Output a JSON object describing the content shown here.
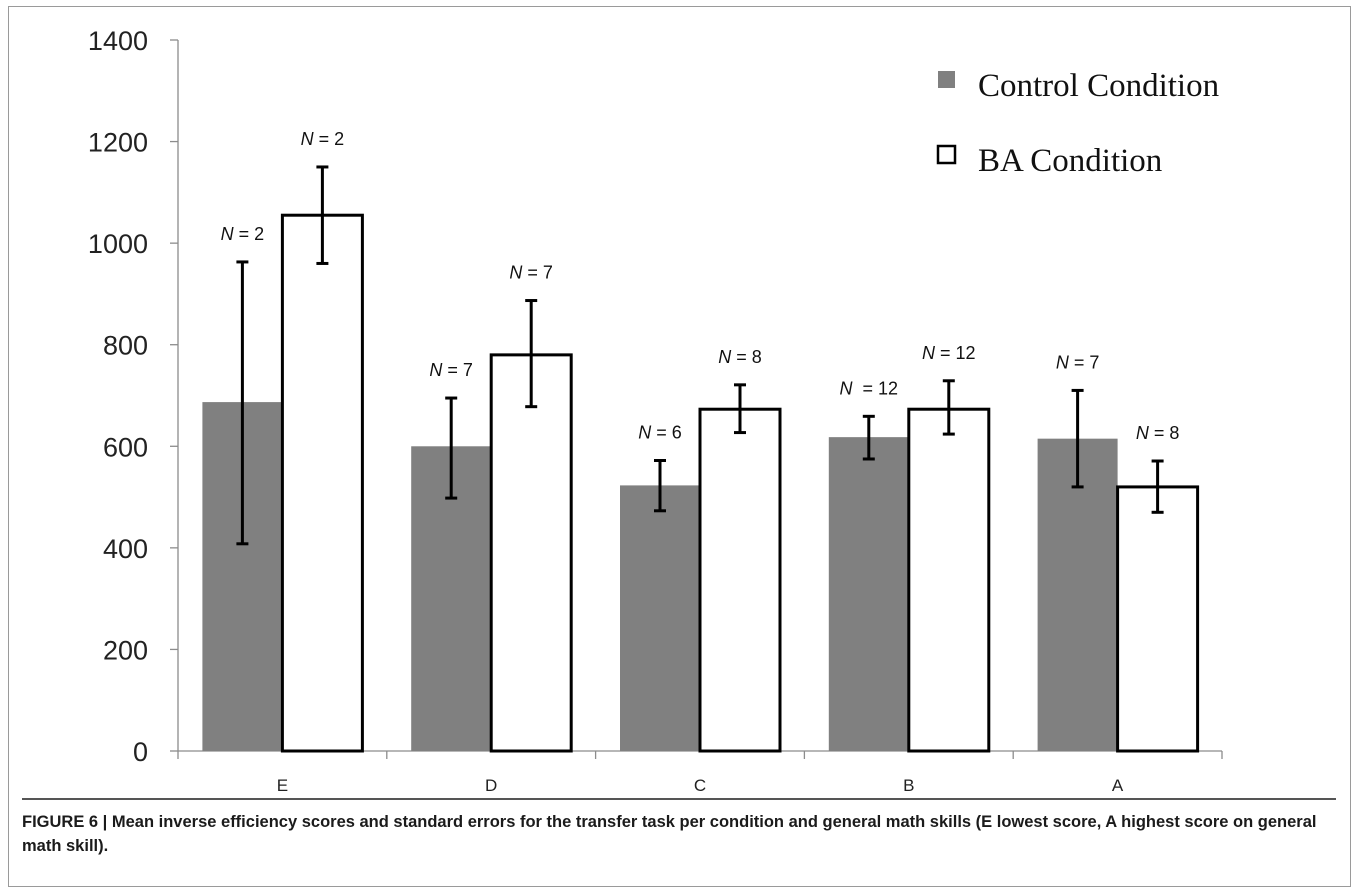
{
  "chart_data": {
    "type": "bar",
    "categories": [
      "E",
      "D",
      "C",
      "B",
      "A"
    ],
    "ylim": [
      0,
      1400
    ],
    "yticks": [
      0,
      200,
      400,
      600,
      800,
      1000,
      1200,
      1400
    ],
    "series": [
      {
        "name": "Control Condition",
        "color": "#808080",
        "values": [
          687,
          600,
          523,
          618,
          615
        ],
        "error_low": [
          408,
          498,
          473,
          575,
          520
        ],
        "error_high": [
          963,
          695,
          572,
          659,
          710
        ],
        "n_labels": [
          "N = 2",
          "N = 7",
          "N = 6",
          "N  = 12",
          "N = 7"
        ]
      },
      {
        "name": "BA Condition",
        "color": "#ffffff",
        "values": [
          1055,
          780,
          673,
          673,
          520
        ],
        "error_low": [
          960,
          678,
          627,
          624,
          470
        ],
        "error_high": [
          1150,
          887,
          721,
          729,
          571
        ],
        "n_labels": [
          "N = 2",
          "N = 7",
          "N = 8",
          "N = 12",
          "N = 8"
        ]
      }
    ],
    "legend_position": "top-right",
    "grid": false
  },
  "caption": "FIGURE 6 | Mean inverse efficiency scores and standard errors for the transfer task per condition and general math skills (E lowest score, A highest score on general math skill)."
}
